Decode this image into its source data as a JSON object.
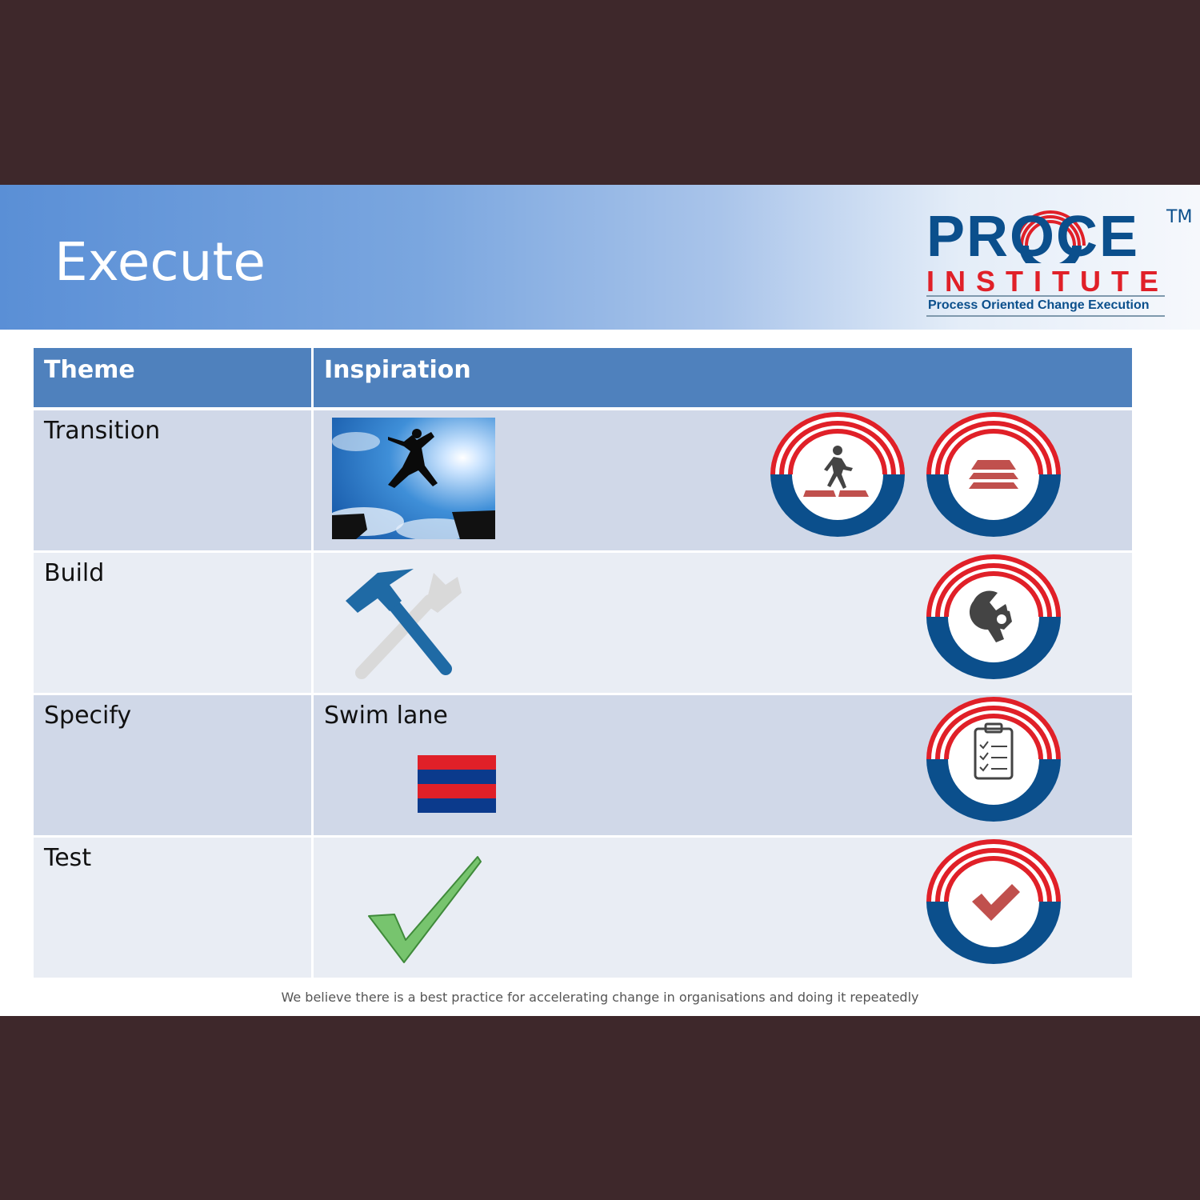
{
  "slide": {
    "title": "Execute",
    "footer": "We believe there is a best practice for accelerating change in organisations and doing it repeatedly"
  },
  "logo": {
    "brand": "PROCE",
    "tm": "TM",
    "institute": "INSTITUTE",
    "tagline": "Process Oriented Change Execution"
  },
  "colors": {
    "header": "#4f81bd",
    "badge_red": "#e02028",
    "badge_blue": "#0b4f8c",
    "icon_red": "#c0504d"
  },
  "table": {
    "headers": [
      "Theme",
      "Inspiration"
    ],
    "rows": [
      {
        "theme": "Transition",
        "inspiration": "",
        "images": [
          "jumping-person-photo"
        ],
        "badges": [
          "walking-person-icon",
          "layers-icon"
        ]
      },
      {
        "theme": "Build",
        "inspiration": "",
        "images": [
          "hammer-wrench-icon"
        ],
        "badges": [
          "wrench-nut-icon"
        ]
      },
      {
        "theme": "Specify",
        "inspiration": "Swim lane",
        "images": [
          "swim-lane-flag"
        ],
        "badges": [
          "clipboard-checklist-icon"
        ]
      },
      {
        "theme": "Test",
        "inspiration": "",
        "images": [
          "green-checkmark-icon"
        ],
        "badges": [
          "checkmark-icon"
        ]
      }
    ]
  }
}
